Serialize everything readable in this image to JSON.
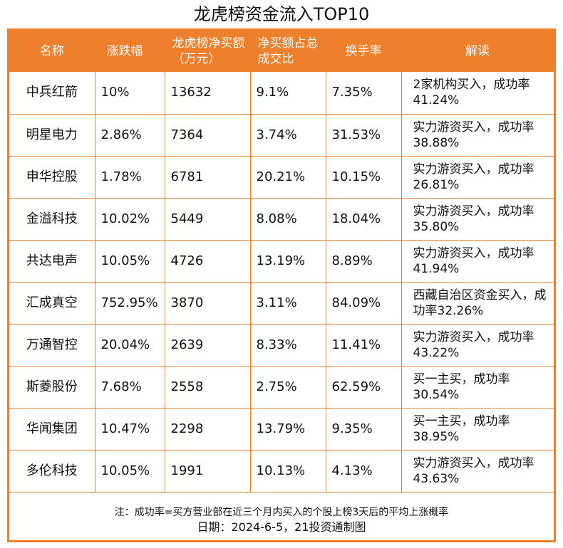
{
  "title": "龙虎榜资金流入TOP10",
  "headers": [
    "名称",
    "涨跌幅",
    "龙虎榜净买额（万元）",
    "净买额占总成交比",
    "换手率",
    "解读"
  ],
  "rows": [
    {
      "name": "中兵红箭",
      "change": "10%",
      "net_buy": "13632",
      "ratio": "9.1%",
      "turnover": "7.35%",
      "note": "2家机构买入，成功率41.24%"
    },
    {
      "name": "明星电力",
      "change": "2.86%",
      "net_buy": "7364",
      "ratio": "3.74%",
      "turnover": "31.53%",
      "note": "实力游资买入，成功率38.88%"
    },
    {
      "name": "申华控股",
      "change": "1.78%",
      "net_buy": "6781",
      "ratio": "20.21%",
      "turnover": "10.15%",
      "note": "实力游资买入，成功率26.81%"
    },
    {
      "name": "金溢科技",
      "change": "10.02%",
      "net_buy": "5449",
      "ratio": "8.08%",
      "turnover": "18.04%",
      "note": "实力游资买入，成功率35.80%"
    },
    {
      "name": "共达电声",
      "change": "10.05%",
      "net_buy": "4726",
      "ratio": "13.19%",
      "turnover": "8.89%",
      "note": "实力游资买入，成功率41.94%"
    },
    {
      "name": "汇成真空",
      "change": "752.95%",
      "net_buy": "3870",
      "ratio": "3.11%",
      "turnover": "84.09%",
      "note": "西藏自治区资金买入，成功率32.26%"
    },
    {
      "name": "万通智控",
      "change": "20.04%",
      "net_buy": "2639",
      "ratio": "8.33%",
      "turnover": "11.41%",
      "note": "实力游资买入，成功率43.22%"
    },
    {
      "name": "斯菱股份",
      "change": "7.68%",
      "net_buy": "2558",
      "ratio": "2.75%",
      "turnover": "62.59%",
      "note": "买一主买，成功率30.54%"
    },
    {
      "name": "华闻集团",
      "change": "10.47%",
      "net_buy": "2298",
      "ratio": "13.79%",
      "turnover": "9.35%",
      "note": "买一主买，成功率38.95%"
    },
    {
      "name": "多伦科技",
      "change": "10.05%",
      "net_buy": "1991",
      "ratio": "10.13%",
      "turnover": "4.13%",
      "note": "实力游资买入，成功率43.63%"
    }
  ],
  "footnote": "注：成功率=买方营业部在近三个月内买入的个股上榜3天后的平均上涨概率",
  "date_line": "日期：2024-6-5，21投资通制图",
  "colors": {
    "accent": "#ee7f2d"
  }
}
